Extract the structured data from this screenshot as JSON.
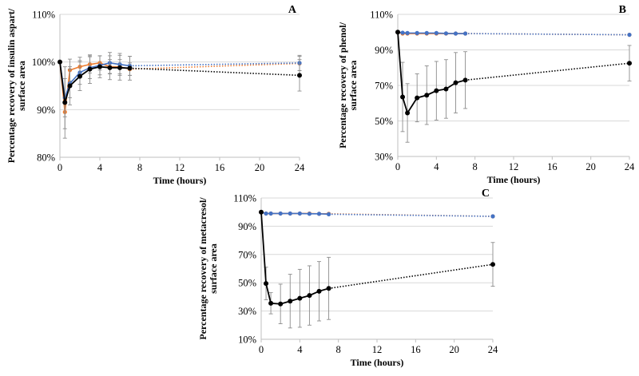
{
  "chart_data": [
    {
      "panel": "A",
      "type": "line",
      "xlabel": "Time (hours)",
      "ylabel_lines": [
        "Percentage recovery of insulin aspart/",
        "surface area"
      ],
      "xlim": [
        0,
        24
      ],
      "ylim": [
        80,
        110
      ],
      "xticks": [
        0,
        4,
        8,
        12,
        16,
        20,
        24
      ],
      "yticks": [
        80,
        90,
        100,
        110
      ],
      "ytick_labels": [
        "80%",
        "90%",
        "100%",
        "110%"
      ],
      "grid": "horizontal",
      "series": [
        {
          "name": "black",
          "color": "#000000",
          "x": [
            0,
            0.5,
            1,
            2,
            3,
            4,
            5,
            6,
            7,
            24
          ],
          "y": [
            100,
            91.5,
            95,
            97,
            98.5,
            99,
            98.8,
            98.8,
            98.7,
            97.2
          ],
          "err": [
            0,
            7.5,
            4,
            3,
            3,
            2.3,
            2.5,
            2.6,
            2.5,
            3.3
          ]
        },
        {
          "name": "orange",
          "color": "#ED7D31",
          "x": [
            0,
            0.5,
            1,
            2,
            3,
            4,
            5,
            6,
            7,
            24
          ],
          "y": [
            100,
            89.5,
            98.3,
            99,
            99.5,
            99.8,
            99,
            99,
            98.5,
            99.7
          ],
          "err": [
            0,
            3.5,
            2.3,
            2,
            1.8,
            1.5,
            1.5,
            1.5,
            1.3,
            1.5
          ]
        },
        {
          "name": "blue",
          "color": "#4472C4",
          "x": [
            0,
            0.5,
            1,
            2,
            3,
            4,
            5,
            6,
            7,
            24
          ],
          "y": [
            100,
            92.5,
            95.5,
            97.8,
            98.8,
            99.3,
            99.8,
            99.5,
            99.2,
            99.8
          ],
          "err": [
            0,
            4,
            3,
            2.5,
            2.3,
            2,
            2.2,
            2.3,
            2,
            1.6
          ]
        }
      ]
    },
    {
      "panel": "B",
      "type": "line",
      "xlabel": "Time (hours)",
      "ylabel_lines": [
        "Percentage recovery of phenol/",
        "surface area"
      ],
      "xlim": [
        0,
        24
      ],
      "ylim": [
        30,
        110
      ],
      "xticks": [
        0,
        4,
        8,
        12,
        16,
        20,
        24
      ],
      "yticks": [
        30,
        50,
        70,
        90,
        110
      ],
      "ytick_labels": [
        "30%",
        "50%",
        "70%",
        "90%",
        "110%"
      ],
      "grid": "horizontal",
      "series": [
        {
          "name": "black",
          "color": "#000000",
          "x": [
            0,
            0.5,
            1,
            2,
            3,
            4,
            5,
            6,
            7,
            24
          ],
          "y": [
            100,
            63.5,
            54.5,
            63,
            64.5,
            67,
            68,
            71.5,
            73,
            82.5
          ],
          "err": [
            0,
            19.5,
            16.5,
            13.5,
            16.5,
            16.5,
            16.5,
            17,
            16,
            10
          ]
        },
        {
          "name": "orange",
          "color": "#ED7D31",
          "x": [
            0,
            0.5,
            1,
            2,
            3,
            4,
            5,
            6,
            7,
            24
          ],
          "y": [
            100,
            99.2,
            99.2,
            99.2,
            99.2,
            99.2,
            99.2,
            99.2,
            99.2,
            98.5
          ],
          "err": [
            0,
            0,
            0,
            0,
            0,
            0,
            0,
            0,
            0,
            0
          ]
        },
        {
          "name": "blue",
          "color": "#4472C4",
          "x": [
            0,
            0.5,
            1,
            2,
            3,
            4,
            5,
            6,
            7,
            24
          ],
          "y": [
            100,
            99.7,
            99.5,
            99.5,
            99.5,
            99.5,
            99.3,
            99.2,
            99.2,
            98.5
          ],
          "err": [
            0,
            0,
            0,
            0,
            0,
            0,
            0,
            0,
            0,
            0
          ]
        }
      ]
    },
    {
      "panel": "C",
      "type": "line",
      "xlabel": "Time (hours)",
      "ylabel_lines": [
        "Percentage recovery of metacresol/",
        "surface area"
      ],
      "xlim": [
        0,
        24
      ],
      "ylim": [
        10,
        110
      ],
      "xticks": [
        0,
        4,
        8,
        12,
        16,
        20,
        24
      ],
      "yticks": [
        10,
        30,
        50,
        70,
        90,
        110
      ],
      "ytick_labels": [
        "10%",
        "30%",
        "50%",
        "70%",
        "90%",
        "110%"
      ],
      "grid": "horizontal",
      "series": [
        {
          "name": "black",
          "color": "#000000",
          "x": [
            0,
            0.5,
            1,
            2,
            3,
            4,
            5,
            6,
            7,
            24
          ],
          "y": [
            100,
            49.5,
            35.5,
            35,
            37,
            39,
            41,
            44,
            46,
            63
          ],
          "err": [
            0,
            11.5,
            7.5,
            14,
            19,
            20.5,
            21,
            21,
            22,
            15.5
          ]
        },
        {
          "name": "orange",
          "color": "#ED7D31",
          "x": [
            0,
            0.5,
            1,
            2,
            3,
            4,
            5,
            6,
            7,
            24
          ],
          "y": [
            100,
            99,
            99,
            99,
            99,
            99,
            99,
            98.8,
            98.8,
            97
          ],
          "err": [
            0,
            0,
            0,
            0,
            0,
            0,
            0,
            0,
            0,
            0
          ]
        },
        {
          "name": "blue",
          "color": "#4472C4",
          "x": [
            0,
            0.5,
            1,
            2,
            3,
            4,
            5,
            6,
            7,
            24
          ],
          "y": [
            100,
            99,
            99,
            99,
            99,
            99,
            98.8,
            98.8,
            98.5,
            97
          ],
          "err": [
            0,
            0,
            0,
            0,
            0,
            0,
            0,
            0,
            0,
            0
          ]
        }
      ]
    }
  ]
}
